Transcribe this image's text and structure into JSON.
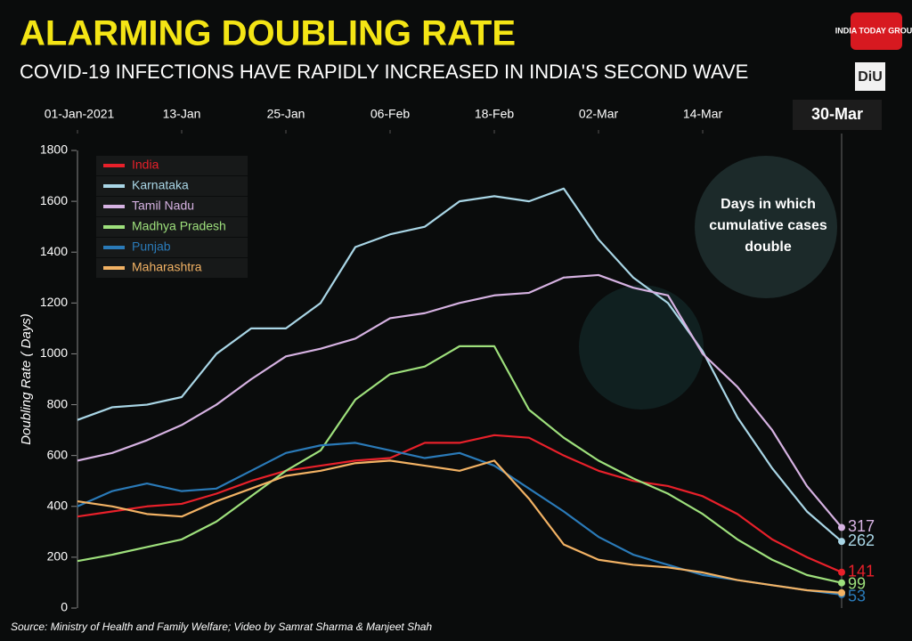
{
  "logo": {
    "brand": "INDIA TODAY GROUP",
    "unit": "DiU"
  },
  "chart_data": {
    "type": "line",
    "title": "ALARMING DOUBLING RATE",
    "subtitle": "COVID-19 INFECTIONS HAVE RAPIDLY INCREASED IN INDIA'S SECOND WAVE",
    "y_label": "Doubling Rate ( Days)",
    "annotation": "Days in which cumulative cases double",
    "source": "Source: Ministry of Health and Family Welfare; Video by Samrat Sharma & Manjeet Shah",
    "x": [
      0,
      4,
      8,
      12,
      16,
      20,
      24,
      28,
      32,
      36,
      40,
      44,
      48,
      52,
      56,
      60,
      64,
      68,
      72,
      76,
      80,
      84,
      88
    ],
    "xlim": [
      0,
      88
    ],
    "xticks": [
      {
        "value": 0,
        "label": "01-Jan-2021"
      },
      {
        "value": 12,
        "label": "13-Jan"
      },
      {
        "value": 24,
        "label": "25-Jan"
      },
      {
        "value": 36,
        "label": "06-Feb"
      },
      {
        "value": 48,
        "label": "18-Feb"
      },
      {
        "value": 60,
        "label": "02-Mar"
      },
      {
        "value": 72,
        "label": "14-Mar"
      },
      {
        "value": 88,
        "label": "30-Mar"
      }
    ],
    "ylim": [
      0,
      1800
    ],
    "yticks": [
      0,
      200,
      400,
      600,
      800,
      1000,
      1200,
      1400,
      1600,
      1800
    ],
    "legend": "top-left",
    "series": [
      {
        "name": "India",
        "color": "#e8202a",
        "end_label": "141",
        "values": [
          360,
          380,
          400,
          410,
          450,
          500,
          540,
          560,
          580,
          590,
          650,
          650,
          680,
          670,
          600,
          540,
          500,
          480,
          440,
          370,
          270,
          200,
          141
        ]
      },
      {
        "name": "Karnataka",
        "color": "#a9d6e6",
        "end_label": "262",
        "values": [
          740,
          790,
          800,
          830,
          1000,
          1100,
          1100,
          1200,
          1420,
          1470,
          1500,
          1600,
          1620,
          1600,
          1650,
          1450,
          1300,
          1200,
          1010,
          750,
          550,
          380,
          262
        ]
      },
      {
        "name": "Tamil Nadu",
        "color": "#d6b2e2",
        "end_label": "317",
        "values": [
          580,
          610,
          660,
          720,
          800,
          900,
          990,
          1020,
          1060,
          1140,
          1160,
          1200,
          1230,
          1240,
          1300,
          1310,
          1260,
          1230,
          1000,
          870,
          700,
          480,
          317
        ]
      },
      {
        "name": "Madhya Pradesh",
        "color": "#9ee07c",
        "end_label": "99",
        "values": [
          185,
          210,
          240,
          270,
          340,
          440,
          540,
          620,
          820,
          920,
          950,
          1030,
          1030,
          780,
          670,
          580,
          510,
          450,
          370,
          270,
          190,
          130,
          99
        ]
      },
      {
        "name": "Punjab",
        "color": "#2a7ab8",
        "end_label": "53",
        "values": [
          400,
          460,
          490,
          460,
          470,
          540,
          610,
          640,
          650,
          620,
          590,
          610,
          560,
          470,
          380,
          280,
          210,
          170,
          130,
          110,
          90,
          70,
          53
        ]
      },
      {
        "name": "Maharashtra",
        "color": "#f2b264",
        "values": [
          420,
          400,
          370,
          360,
          420,
          470,
          520,
          540,
          570,
          580,
          560,
          540,
          580,
          430,
          250,
          190,
          170,
          160,
          140,
          110,
          90,
          70,
          60
        ]
      }
    ]
  }
}
